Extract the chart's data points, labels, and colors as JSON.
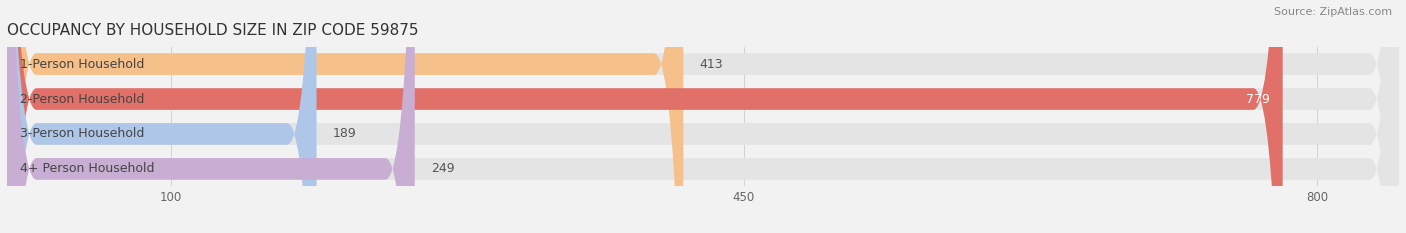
{
  "title": "OCCUPANCY BY HOUSEHOLD SIZE IN ZIP CODE 59875",
  "source": "Source: ZipAtlas.com",
  "categories": [
    "1-Person Household",
    "2-Person Household",
    "3-Person Household",
    "4+ Person Household"
  ],
  "values": [
    413,
    779,
    189,
    249
  ],
  "bar_colors": [
    "#f5c08a",
    "#e07068",
    "#aec6e8",
    "#c9aed4"
  ],
  "background_color": "#f2f2f2",
  "bar_bg_color": "#e4e4e4",
  "xmin": 0,
  "xmax": 850,
  "xticks": [
    100,
    450,
    800
  ],
  "label_fontsize": 9,
  "title_fontsize": 11,
  "source_fontsize": 8,
  "bar_height": 0.62,
  "bar_gap": 0.38,
  "figsize": [
    14.06,
    2.33
  ],
  "dpi": 100
}
